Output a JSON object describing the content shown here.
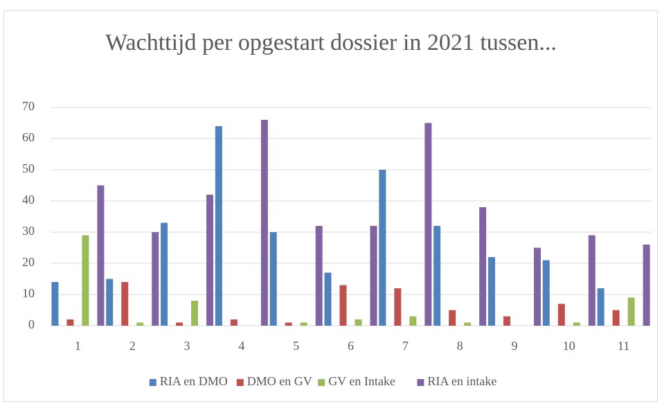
{
  "chart_data": {
    "type": "bar",
    "title": "Wachttijd per opgestart dossier in 2021 tussen...",
    "categories": [
      "1",
      "2",
      "3",
      "4",
      "5",
      "6",
      "7",
      "8",
      "9",
      "10",
      "11"
    ],
    "series": [
      {
        "name": "RIA en DMO",
        "color": "#4f81bd",
        "values": [
          14,
          15,
          33,
          64,
          30,
          17,
          50,
          32,
          22,
          21,
          12
        ]
      },
      {
        "name": "DMO en GV",
        "color": "#c0504d",
        "values": [
          2,
          14,
          1,
          2,
          1,
          13,
          12,
          5,
          3,
          7,
          5
        ]
      },
      {
        "name": "GV en Intake",
        "color": "#9bbb59",
        "values": [
          29,
          1,
          8,
          0,
          1,
          2,
          3,
          1,
          0,
          1,
          9
        ]
      },
      {
        "name": "RIA en intake",
        "color": "#8064a2",
        "values": [
          45,
          30,
          42,
          66,
          32,
          32,
          65,
          38,
          25,
          29,
          26
        ]
      }
    ],
    "ylim": [
      0,
      70
    ],
    "yticks": [
      0,
      10,
      20,
      30,
      40,
      50,
      60,
      70
    ],
    "grid": true,
    "legend": "bottom"
  }
}
